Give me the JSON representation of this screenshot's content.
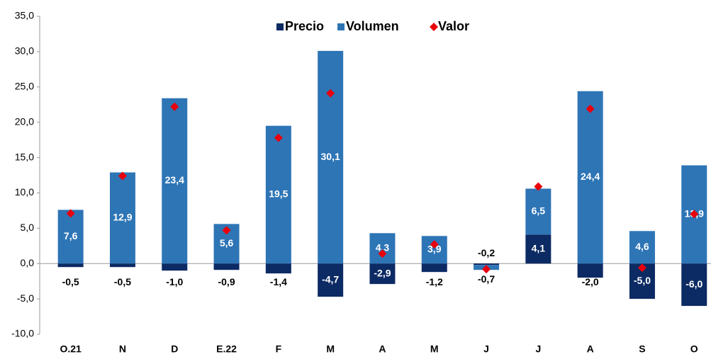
{
  "chart_data": {
    "type": "bar",
    "categories": [
      "O.21",
      "N",
      "D",
      "E.22",
      "F",
      "M",
      "A",
      "M",
      "J",
      "J",
      "A",
      "S",
      "O"
    ],
    "series": [
      {
        "name": "Precio",
        "color": "#0c2a63",
        "values": [
          -0.5,
          -0.5,
          -1.0,
          -0.9,
          -1.4,
          -4.7,
          -2.9,
          -1.2,
          -0.2,
          4.1,
          -2.0,
          -5.0,
          -6.0
        ],
        "value_labels": [
          "-0,5",
          "-0,5",
          "-1,0",
          "-0,9",
          "-1,4",
          "-4,7",
          "-2,9",
          "-1,2",
          "-0,2",
          "4,1",
          "-2,0",
          "-5,0",
          "-6,0"
        ]
      },
      {
        "name": "Volumen",
        "color": "#2e75b6",
        "values": [
          7.6,
          12.9,
          23.4,
          5.6,
          19.5,
          30.1,
          4.3,
          3.9,
          -0.7,
          6.5,
          24.4,
          4.6,
          13.9
        ],
        "value_labels": [
          "7,6",
          "12,9",
          "23,4",
          "5,6",
          "19,5",
          "30,1",
          "4,3",
          "3,9",
          "-0,7",
          "6,5",
          "24,4",
          "4,6",
          "13,9"
        ]
      },
      {
        "name": "Valor",
        "color": "#e8000b",
        "marker": "diamond",
        "values": [
          7.1,
          12.4,
          22.2,
          4.7,
          17.8,
          24.1,
          1.4,
          2.7,
          -0.8,
          10.9,
          21.9,
          -0.6,
          7.0
        ]
      }
    ],
    "ylim": [
      -10,
      35
    ],
    "yticks": [
      {
        "value": -10,
        "label": "-10,0"
      },
      {
        "value": -5,
        "label": "-5,0"
      },
      {
        "value": 0,
        "label": "0,0"
      },
      {
        "value": 5,
        "label": "5,0"
      },
      {
        "value": 10,
        "label": "10,0"
      },
      {
        "value": 15,
        "label": "15,0"
      },
      {
        "value": 20,
        "label": "20,0"
      },
      {
        "value": 25,
        "label": "25,0"
      },
      {
        "value": 30,
        "label": "30,0"
      },
      {
        "value": 35,
        "label": "35,0"
      }
    ],
    "legend": "top",
    "grid": false
  }
}
